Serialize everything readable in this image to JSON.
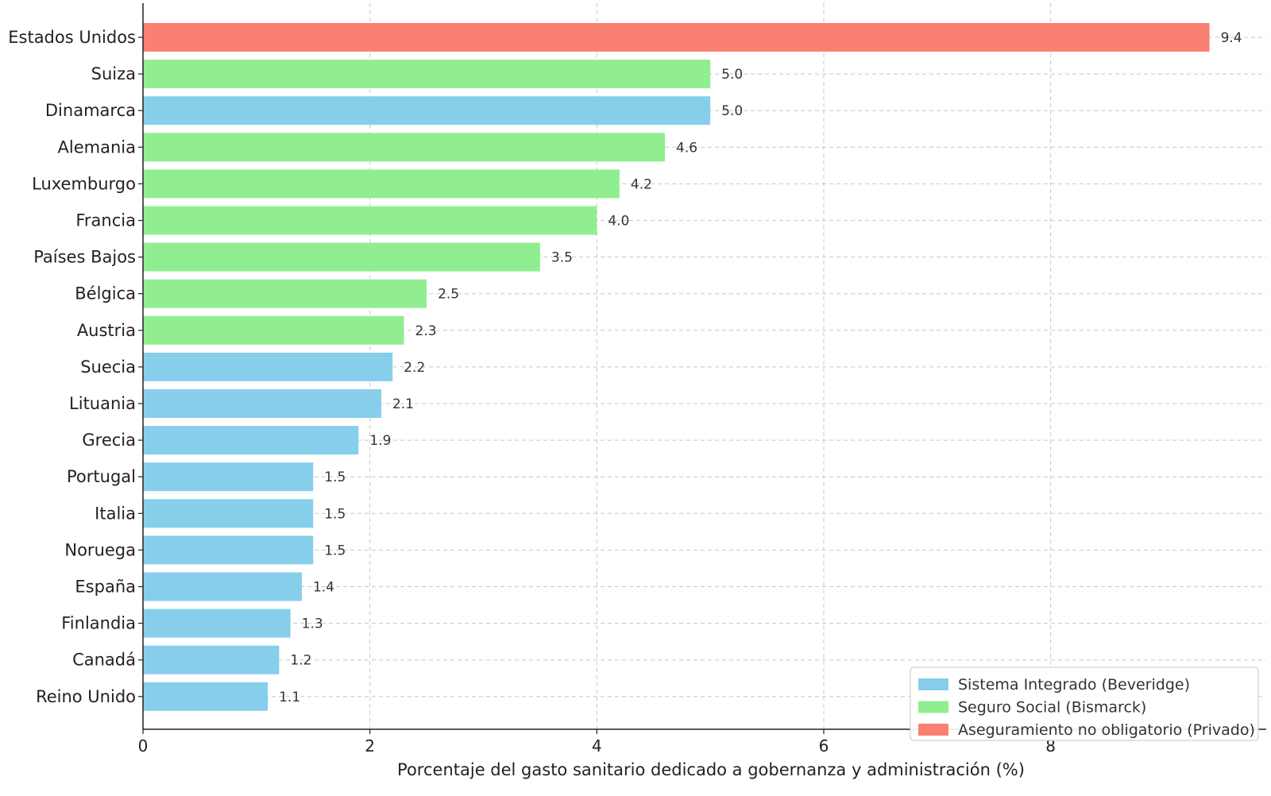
{
  "chart_data": {
    "type": "bar",
    "orientation": "horizontal",
    "title": "",
    "xlabel": "Porcentaje del gasto sanitario dedicado a gobernanza y administración (%)",
    "ylabel": "",
    "xlim": [
      0,
      9.9
    ],
    "xticks": [
      0,
      2,
      4,
      6,
      8
    ],
    "grid": true,
    "legend_position": "lower-right",
    "colors": {
      "beveridge": "#87ceeb",
      "bismarck": "#90ee90",
      "privado": "#fa8072"
    },
    "legend": [
      {
        "key": "beveridge",
        "label": "Sistema Integrado (Beveridge)"
      },
      {
        "key": "bismarck",
        "label": "Seguro Social (Bismarck)"
      },
      {
        "key": "privado",
        "label": "Aseguramiento no obligatorio (Privado)"
      }
    ],
    "bars": [
      {
        "country": "Estados Unidos",
        "value": 9.4,
        "label": "9.4",
        "system": "privado"
      },
      {
        "country": "Suiza",
        "value": 5.0,
        "label": "5.0",
        "system": "bismarck"
      },
      {
        "country": "Dinamarca",
        "value": 5.0,
        "label": "5.0",
        "system": "beveridge"
      },
      {
        "country": "Alemania",
        "value": 4.6,
        "label": "4.6",
        "system": "bismarck"
      },
      {
        "country": "Luxemburgo",
        "value": 4.2,
        "label": "4.2",
        "system": "bismarck"
      },
      {
        "country": "Francia",
        "value": 4.0,
        "label": "4.0",
        "system": "bismarck"
      },
      {
        "country": "Países Bajos",
        "value": 3.5,
        "label": "3.5",
        "system": "bismarck"
      },
      {
        "country": "Bélgica",
        "value": 2.5,
        "label": "2.5",
        "system": "bismarck"
      },
      {
        "country": "Austria",
        "value": 2.3,
        "label": "2.3",
        "system": "bismarck"
      },
      {
        "country": "Suecia",
        "value": 2.2,
        "label": "2.2",
        "system": "beveridge"
      },
      {
        "country": "Lituania",
        "value": 2.1,
        "label": "2.1",
        "system": "beveridge"
      },
      {
        "country": "Grecia",
        "value": 1.9,
        "label": "1.9",
        "system": "beveridge"
      },
      {
        "country": "Portugal",
        "value": 1.5,
        "label": "1.5",
        "system": "beveridge"
      },
      {
        "country": "Italia",
        "value": 1.5,
        "label": "1.5",
        "system": "beveridge"
      },
      {
        "country": "Noruega",
        "value": 1.5,
        "label": "1.5",
        "system": "beveridge"
      },
      {
        "country": "España",
        "value": 1.4,
        "label": "1.4",
        "system": "beveridge"
      },
      {
        "country": "Finlandia",
        "value": 1.3,
        "label": "1.3",
        "system": "beveridge"
      },
      {
        "country": "Canadá",
        "value": 1.2,
        "label": "1.2",
        "system": "beveridge"
      },
      {
        "country": "Reino Unido",
        "value": 1.1,
        "label": "1.1",
        "system": "beveridge"
      }
    ]
  }
}
